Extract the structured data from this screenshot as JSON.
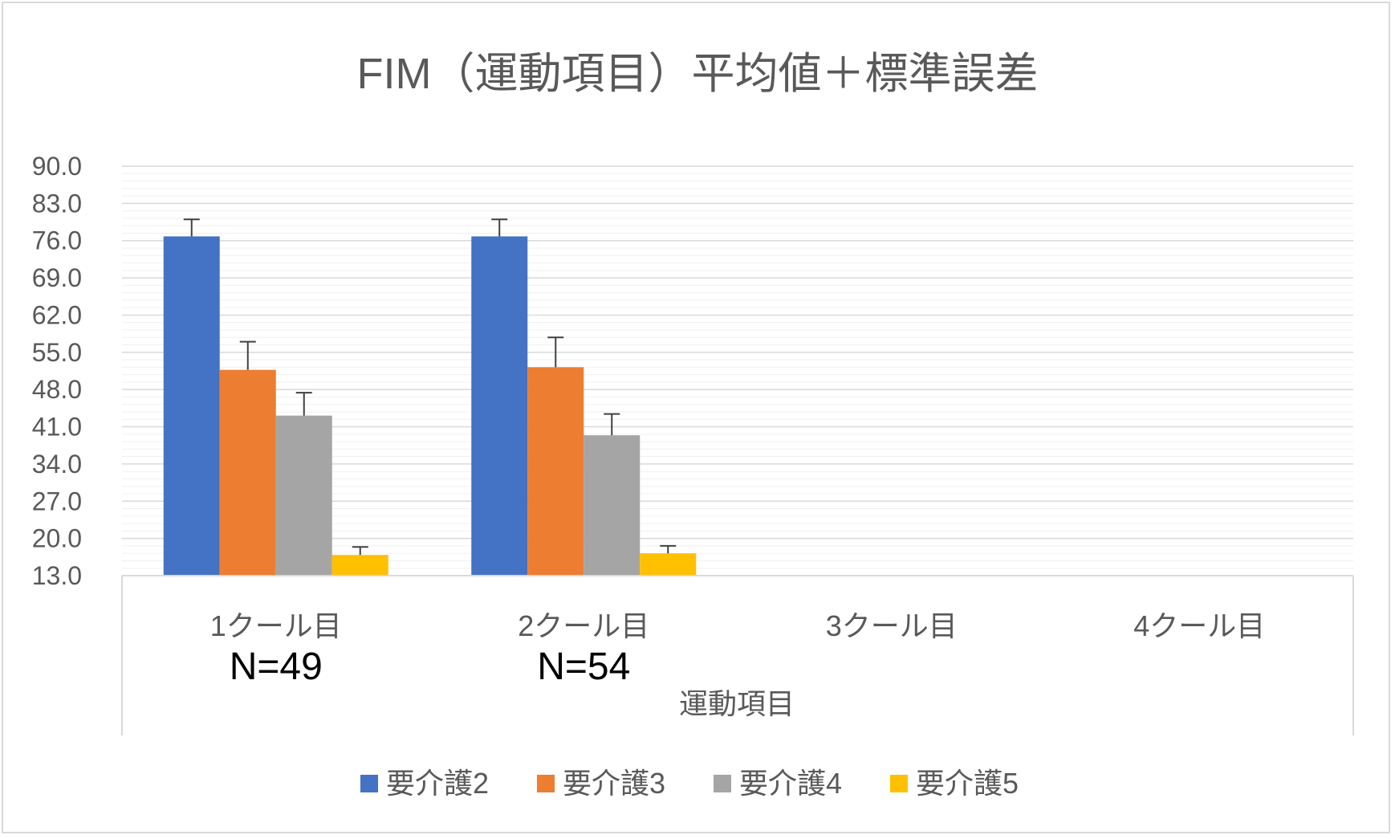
{
  "chart_data": {
    "type": "bar",
    "title": "FIM（運動項目）平均値＋標準誤差",
    "xlabel": "運動項目",
    "ylabel": "",
    "ylim": [
      13.0,
      90.0
    ],
    "yticks": [
      "13.0",
      "20.0",
      "27.0",
      "34.0",
      "41.0",
      "48.0",
      "55.0",
      "62.0",
      "69.0",
      "76.0",
      "83.0",
      "90.0"
    ],
    "categories": [
      "1クール目",
      "2クール目",
      "3クール目",
      "4クール目"
    ],
    "category_notes": [
      "N=49",
      "N=54",
      "",
      ""
    ],
    "series": [
      {
        "name": "要介護2",
        "color": "#4472c4",
        "values": [
          76.8,
          76.8,
          null,
          null
        ],
        "errors": [
          3.2,
          3.2,
          null,
          null
        ]
      },
      {
        "name": "要介護3",
        "color": "#ed7d31",
        "values": [
          51.7,
          52.2,
          null,
          null
        ],
        "errors": [
          5.3,
          5.6,
          null,
          null
        ]
      },
      {
        "name": "要介護4",
        "color": "#a5a5a5",
        "values": [
          43.1,
          39.4,
          null,
          null
        ],
        "errors": [
          4.3,
          4.0,
          null,
          null
        ]
      },
      {
        "name": "要介護5",
        "color": "#ffc000",
        "values": [
          16.9,
          17.2,
          null,
          null
        ],
        "errors": [
          1.5,
          1.4,
          null,
          null
        ]
      }
    ],
    "grid": true,
    "legend_position": "bottom"
  }
}
